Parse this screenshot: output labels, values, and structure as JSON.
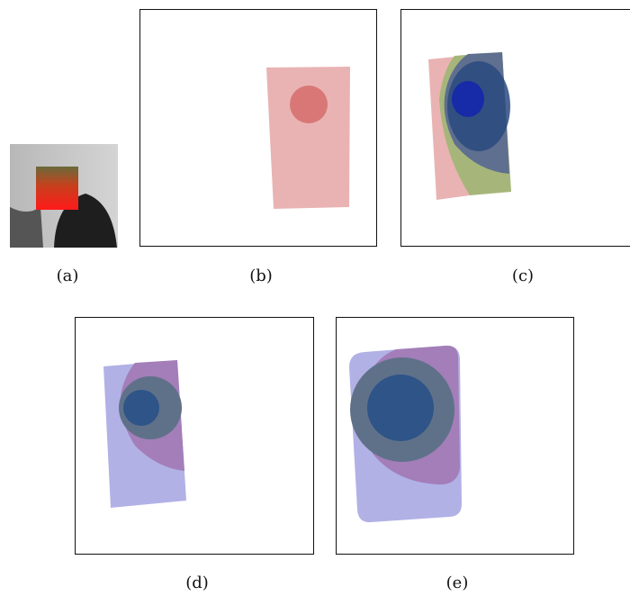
{
  "panels": [
    {
      "caption": "(a)"
    },
    {
      "caption": "(b)"
    },
    {
      "caption": "(c)"
    },
    {
      "caption": "(d)"
    },
    {
      "caption": "(e)"
    }
  ]
}
